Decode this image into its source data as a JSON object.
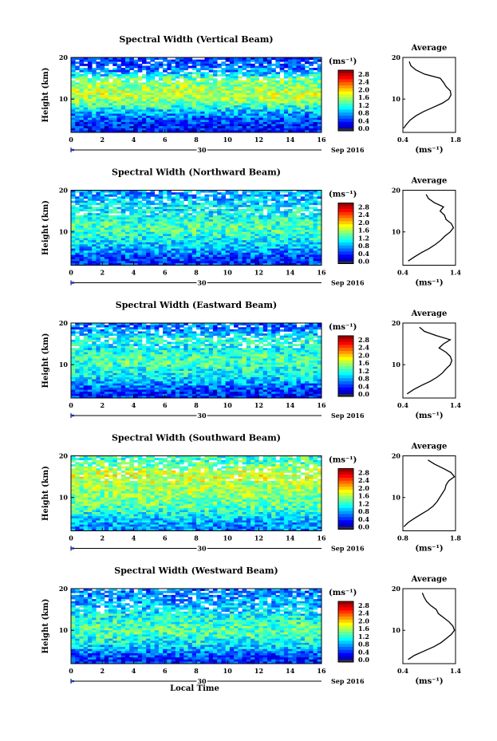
{
  "figure": {
    "xlabel": "Local Time",
    "colorbar_unit": "(ms⁻¹)",
    "average_title": "Average",
    "average_unit": "(ms⁻¹)",
    "ylabel": "Height (km)",
    "day_label": "30",
    "date_label": "Sep 2016"
  },
  "chart_data": [
    {
      "type": "heatmap",
      "title": "Spectral Width (Vertical Beam)",
      "xlabel": "",
      "ylabel": "Height (km)",
      "x_ticks": [
        "0",
        "2",
        "4",
        "6",
        "8",
        "10",
        "12",
        "14",
        "16"
      ],
      "y_ticks": [
        "10",
        "20"
      ],
      "xlim": [
        0,
        16
      ],
      "ylim": [
        2,
        20
      ],
      "colorbar": {
        "unit": "(ms⁻¹)",
        "ticks": [
          "0.0",
          "0.4",
          "0.8",
          "1.2",
          "1.6",
          "2.0",
          "2.4",
          "2.8"
        ],
        "range": [
          0,
          3.0
        ]
      },
      "profile_height_km": [
        3,
        4,
        5,
        6,
        7,
        8,
        9,
        10,
        11,
        12,
        13,
        14,
        15,
        16,
        17,
        18,
        19
      ],
      "average": {
        "title": "Average",
        "x_ticks": [
          "0.4",
          "1.8"
        ],
        "xlim": [
          0.4,
          1.8
        ],
        "y_ticks": [
          "10",
          "20"
        ],
        "values": [
          0.42,
          0.5,
          0.6,
          0.75,
          0.95,
          1.2,
          1.45,
          1.62,
          1.68,
          1.66,
          1.55,
          1.5,
          1.4,
          1.0,
          0.75,
          0.6,
          0.55
        ]
      }
    },
    {
      "type": "heatmap",
      "title": "Spectral Width (Northward Beam)",
      "xlabel": "",
      "ylabel": "Height (km)",
      "x_ticks": [
        "0",
        "2",
        "4",
        "6",
        "8",
        "10",
        "12",
        "14",
        "16"
      ],
      "y_ticks": [
        "10",
        "20"
      ],
      "xlim": [
        0,
        16
      ],
      "ylim": [
        2,
        20
      ],
      "colorbar": {
        "unit": "(ms⁻¹)",
        "ticks": [
          "0.0",
          "0.4",
          "0.8",
          "1.2",
          "1.6",
          "2.0",
          "2.4",
          "2.8"
        ],
        "range": [
          0,
          3.0
        ]
      },
      "profile_height_km": [
        3,
        4,
        5,
        6,
        7,
        8,
        9,
        10,
        11,
        12,
        13,
        14,
        15,
        16,
        17,
        18,
        19
      ],
      "average": {
        "title": "Average",
        "x_ticks": [
          "0.4",
          "1.4"
        ],
        "xlim": [
          0.4,
          1.4
        ],
        "y_ticks": [
          "10",
          "20"
        ],
        "values": [
          0.5,
          0.62,
          0.75,
          0.9,
          1.02,
          1.12,
          1.2,
          1.3,
          1.36,
          1.32,
          1.22,
          1.18,
          1.1,
          1.15,
          1.0,
          0.9,
          0.85
        ]
      }
    },
    {
      "type": "heatmap",
      "title": "Spectral Width (Eastward Beam)",
      "xlabel": "",
      "ylabel": "Height (km)",
      "x_ticks": [
        "0",
        "2",
        "4",
        "6",
        "8",
        "10",
        "12",
        "14",
        "16"
      ],
      "y_ticks": [
        "10",
        "20"
      ],
      "xlim": [
        0,
        16
      ],
      "ylim": [
        2,
        20
      ],
      "colorbar": {
        "unit": "(ms⁻¹)",
        "ticks": [
          "0.0",
          "0.4",
          "0.8",
          "1.2",
          "1.6",
          "2.0",
          "2.4",
          "2.8"
        ],
        "range": [
          0,
          3.0
        ]
      },
      "profile_height_km": [
        3,
        4,
        5,
        6,
        7,
        8,
        9,
        10,
        11,
        12,
        13,
        14,
        15,
        16,
        17,
        18,
        19
      ],
      "average": {
        "title": "Average",
        "x_ticks": [
          "0.4",
          "1.4"
        ],
        "xlim": [
          0.4,
          1.4
        ],
        "y_ticks": [
          "10",
          "20"
        ],
        "values": [
          0.48,
          0.6,
          0.75,
          0.92,
          1.05,
          1.15,
          1.22,
          1.3,
          1.33,
          1.3,
          1.22,
          1.1,
          1.15,
          1.3,
          1.05,
          0.8,
          0.7
        ]
      }
    },
    {
      "type": "heatmap",
      "title": "Spectral Width (Southward Beam)",
      "xlabel": "",
      "ylabel": "Height (km)",
      "x_ticks": [
        "0",
        "2",
        "4",
        "6",
        "8",
        "10",
        "12",
        "14",
        "16"
      ],
      "y_ticks": [
        "10",
        "20"
      ],
      "xlim": [
        0,
        16
      ],
      "ylim": [
        2,
        20
      ],
      "colorbar": {
        "unit": "(ms⁻¹)",
        "ticks": [
          "0.0",
          "0.4",
          "0.8",
          "1.2",
          "1.6",
          "2.0",
          "2.4",
          "2.8"
        ],
        "range": [
          0,
          3.0
        ]
      },
      "profile_height_km": [
        3,
        4,
        5,
        6,
        7,
        8,
        9,
        10,
        11,
        12,
        13,
        14,
        15,
        16,
        17,
        18,
        19
      ],
      "average": {
        "title": "Average",
        "x_ticks": [
          "0.8",
          "1.8"
        ],
        "xlim": [
          0.8,
          1.8
        ],
        "y_ticks": [
          "10",
          "20"
        ],
        "values": [
          0.82,
          0.9,
          1.02,
          1.15,
          1.28,
          1.38,
          1.45,
          1.5,
          1.55,
          1.6,
          1.62,
          1.7,
          1.75,
          1.72,
          1.55,
          1.4,
          1.3
        ]
      }
    },
    {
      "type": "heatmap",
      "title": "Spectral Width (Westward Beam)",
      "xlabel": "Local Time",
      "ylabel": "Height (km)",
      "x_ticks": [
        "0",
        "2",
        "4",
        "6",
        "8",
        "10",
        "12",
        "14",
        "16"
      ],
      "y_ticks": [
        "10",
        "20"
      ],
      "xlim": [
        0,
        16
      ],
      "ylim": [
        2,
        20
      ],
      "colorbar": {
        "unit": "(ms⁻¹)",
        "ticks": [
          "0.0",
          "0.4",
          "0.8",
          "1.2",
          "1.6",
          "2.0",
          "2.4",
          "2.8"
        ],
        "range": [
          0,
          3.0
        ]
      },
      "profile_height_km": [
        3,
        4,
        5,
        6,
        7,
        8,
        9,
        10,
        11,
        12,
        13,
        14,
        15,
        16,
        17,
        18,
        19
      ],
      "average": {
        "title": "Average",
        "x_ticks": [
          "0.4",
          "1.4"
        ],
        "xlim": [
          0.4,
          1.4
        ],
        "y_ticks": [
          "10",
          "20"
        ],
        "values": [
          0.5,
          0.62,
          0.8,
          0.98,
          1.12,
          1.22,
          1.32,
          1.38,
          1.35,
          1.28,
          1.18,
          1.1,
          1.02,
          0.95,
          0.85,
          0.78,
          0.75
        ]
      }
    }
  ]
}
